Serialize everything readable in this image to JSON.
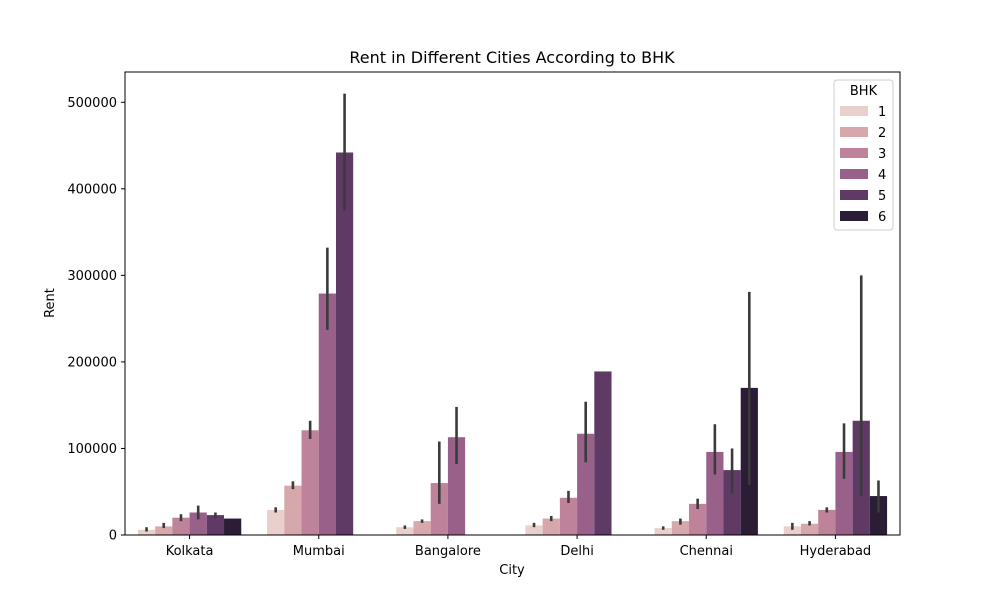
{
  "chart_data": {
    "type": "bar",
    "title": "Rent in Different Cities According to BHK",
    "xlabel": "City",
    "ylabel": "Rent",
    "ylim": [
      0,
      535000
    ],
    "yticks": [
      0,
      100000,
      200000,
      300000,
      400000,
      500000
    ],
    "categories": [
      "Kolkata",
      "Mumbai",
      "Bangalore",
      "Delhi",
      "Chennai",
      "Hyderabad"
    ],
    "legend": {
      "title": "BHK",
      "position": "top-right"
    },
    "grid": false,
    "series": [
      {
        "name": "1",
        "color": "#e9d0cc",
        "values": [
          6000,
          29000,
          9000,
          11000,
          8000,
          10000
        ],
        "err_low": [
          4000,
          26000,
          7000,
          9000,
          6000,
          6000
        ],
        "err_high": [
          9000,
          32000,
          11000,
          14000,
          10000,
          14000
        ]
      },
      {
        "name": "2",
        "color": "#d7a8ab",
        "values": [
          10000,
          57000,
          16000,
          19000,
          16000,
          13000
        ],
        "err_low": [
          8000,
          53000,
          14000,
          16000,
          12000,
          11000
        ],
        "err_high": [
          14000,
          62000,
          18000,
          22000,
          19000,
          16000
        ]
      },
      {
        "name": "3",
        "color": "#be829a",
        "values": [
          20000,
          121000,
          60000,
          43000,
          36000,
          29000
        ],
        "err_low": [
          16000,
          111000,
          36000,
          37000,
          30000,
          26000
        ],
        "err_high": [
          24000,
          132000,
          108000,
          51000,
          42000,
          32000
        ]
      },
      {
        "name": "4",
        "color": "#99608a",
        "values": [
          26000,
          279000,
          113000,
          117000,
          96000,
          96000
        ],
        "err_low": [
          18000,
          237000,
          82000,
          84000,
          70000,
          65000
        ],
        "err_high": [
          34000,
          332000,
          148000,
          154000,
          128000,
          129000
        ]
      },
      {
        "name": "5",
        "color": "#5f3a65",
        "values": [
          23000,
          442000,
          null,
          189000,
          75000,
          132000
        ],
        "err_low": [
          20000,
          375000,
          null,
          null,
          48000,
          45000
        ],
        "err_high": [
          26000,
          510000,
          null,
          null,
          100000,
          300000
        ]
      },
      {
        "name": "6",
        "color": "#2c1d37",
        "values": [
          19000,
          null,
          null,
          null,
          170000,
          45000
        ],
        "err_low": [
          null,
          null,
          null,
          null,
          58000,
          26000
        ],
        "err_high": [
          null,
          null,
          null,
          null,
          281000,
          63000
        ]
      }
    ]
  }
}
